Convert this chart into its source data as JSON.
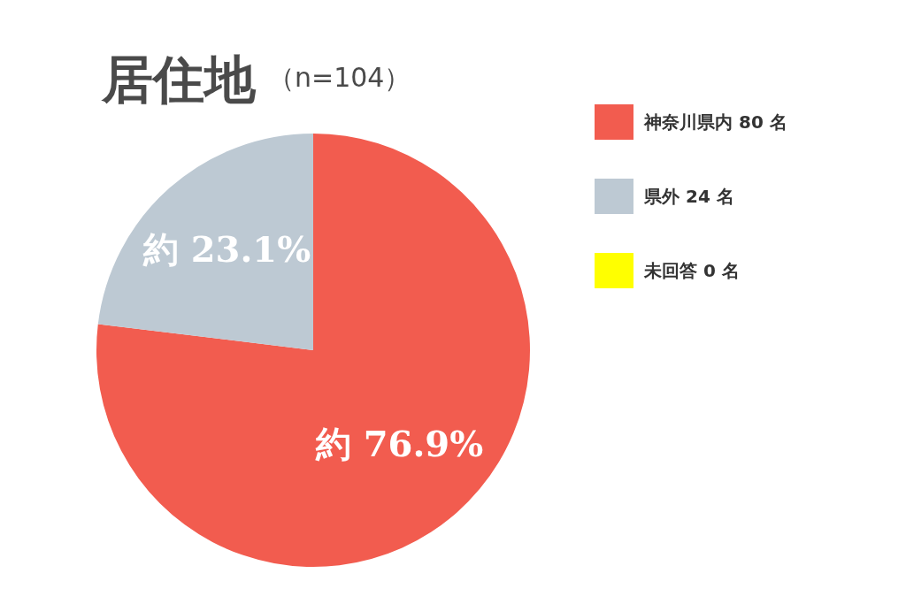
{
  "chart_data": {
    "type": "pie",
    "title": "居住地",
    "subtitle": "（n=104）",
    "categories": [
      "神奈川県内 80 名",
      "県外 24 名",
      "未回答 0 名"
    ],
    "values": [
      80,
      24,
      0
    ],
    "colors": [
      "#f25c4f",
      "#bdc9d3",
      "#ffff00"
    ],
    "value_labels": [
      "約 76.9%",
      "約 23.1%",
      null
    ],
    "legend": "top right"
  }
}
